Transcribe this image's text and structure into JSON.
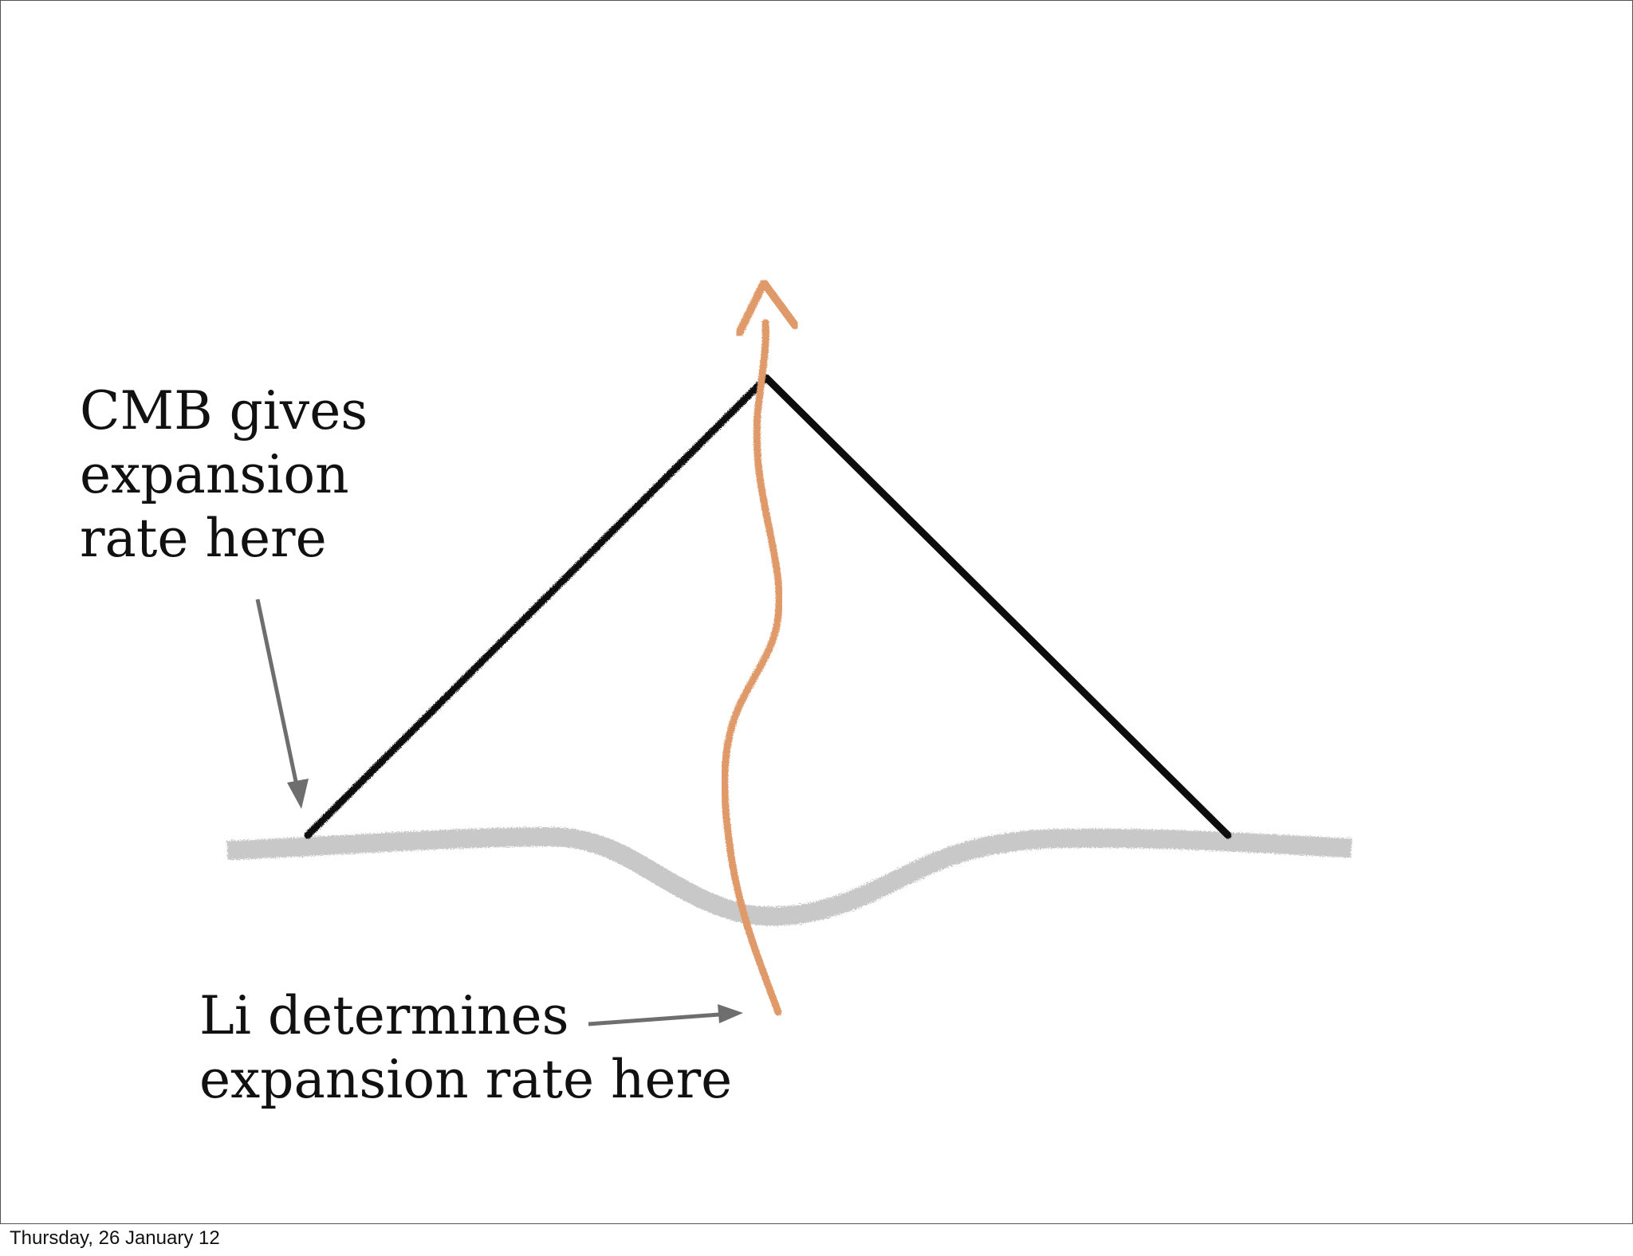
{
  "annotations": {
    "cmb_lines": [
      "CMB gives",
      "expansion",
      "rate here"
    ],
    "li_lines": [
      "Li determines",
      "expansion rate here"
    ]
  },
  "footer": {
    "date": "Thursday, 26 January 12"
  },
  "colors": {
    "light_cone": "#111111",
    "worldline": "#e09a6a",
    "surface": "#c8c8c8",
    "pointer_arrow": "#6e6e6e"
  }
}
